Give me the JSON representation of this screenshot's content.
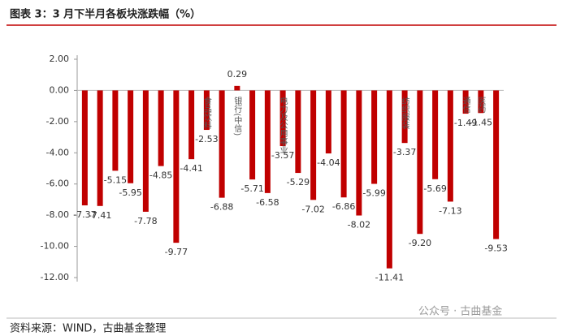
{
  "chart_data": {
    "type": "bar",
    "title": "图表 3：3 月下半月各板块涨跌幅（%）",
    "source": "资料来源：WIND，古曲基金整理",
    "watermark": "公众号 · 古曲基金",
    "categories": [
      null,
      null,
      null,
      null,
      null,
      null,
      null,
      null,
      "食品饮料",
      null,
      "银行(中信)",
      null,
      null,
      "电力及公用事业",
      null,
      null,
      null,
      null,
      null,
      null,
      null,
      "纺织服装",
      null,
      null,
      null,
      "通信",
      "医药",
      null
    ],
    "values": [
      -7.37,
      -7.41,
      -5.15,
      -5.95,
      -7.78,
      -4.85,
      -9.77,
      -4.41,
      -2.53,
      -6.88,
      0.29,
      -5.71,
      -6.58,
      -3.57,
      -5.29,
      -7.02,
      -4.04,
      -6.86,
      -8.02,
      -5.99,
      -11.41,
      -3.37,
      -9.2,
      -5.69,
      -7.13,
      -1.49,
      -1.45,
      -9.53
    ],
    "value_labels": [
      "-7.37",
      "-7.41",
      "-5.15",
      "-5.95",
      "-7.78",
      "-4.85",
      "-9.77",
      "-4.41",
      "-2.53",
      "-6.88",
      "0.29",
      "-5.71",
      "-6.58",
      "-3.57",
      "-5.29",
      "-7.02",
      "-4.04",
      "-6.86",
      "-8.02",
      "-5.99",
      "-11.41",
      "-3.37",
      "-9.20",
      "-5.69",
      "-7.13",
      "-1.49",
      "-1.45",
      "-9.53"
    ],
    "color": "#c00000",
    "ylim": [
      -12,
      2
    ],
    "yticks": [
      {
        "value": -12,
        "label": "-12.00"
      },
      {
        "value": -10,
        "label": "-10.00"
      },
      {
        "value": -8,
        "label": "-8.00"
      },
      {
        "value": -6,
        "label": "-6.00"
      },
      {
        "value": -4,
        "label": "-4.00"
      },
      {
        "value": -2,
        "label": "-2.00"
      },
      {
        "value": 0,
        "label": "0.00"
      },
      {
        "value": 2,
        "label": "2.00"
      }
    ],
    "grid": false
  }
}
